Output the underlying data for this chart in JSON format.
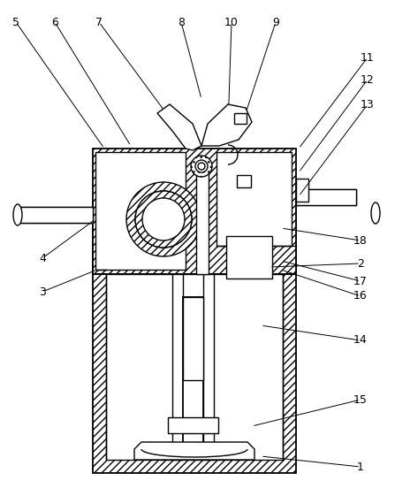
{
  "figsize": [
    4.47,
    5.61
  ],
  "dpi": 100,
  "bg": "#ffffff",
  "lc": "#000000",
  "annotations": [
    [
      "1",
      408,
      528,
      295,
      516
    ],
    [
      "2",
      408,
      298,
      305,
      302
    ],
    [
      "3",
      48,
      330,
      110,
      305
    ],
    [
      "4",
      48,
      292,
      108,
      248
    ],
    [
      "5",
      18,
      25,
      118,
      168
    ],
    [
      "6",
      62,
      25,
      148,
      165
    ],
    [
      "7",
      112,
      25,
      188,
      128
    ],
    [
      "8",
      205,
      25,
      228,
      112
    ],
    [
      "9",
      312,
      25,
      278,
      128
    ],
    [
      "10",
      262,
      25,
      258,
      145
    ],
    [
      "11",
      416,
      65,
      338,
      168
    ],
    [
      "12",
      416,
      90,
      338,
      195
    ],
    [
      "13",
      416,
      118,
      338,
      222
    ],
    [
      "14",
      408,
      385,
      295,
      368
    ],
    [
      "15",
      408,
      452,
      285,
      482
    ],
    [
      "16",
      408,
      335,
      318,
      305
    ],
    [
      "17",
      408,
      318,
      318,
      295
    ],
    [
      "18",
      408,
      272,
      318,
      258
    ]
  ]
}
